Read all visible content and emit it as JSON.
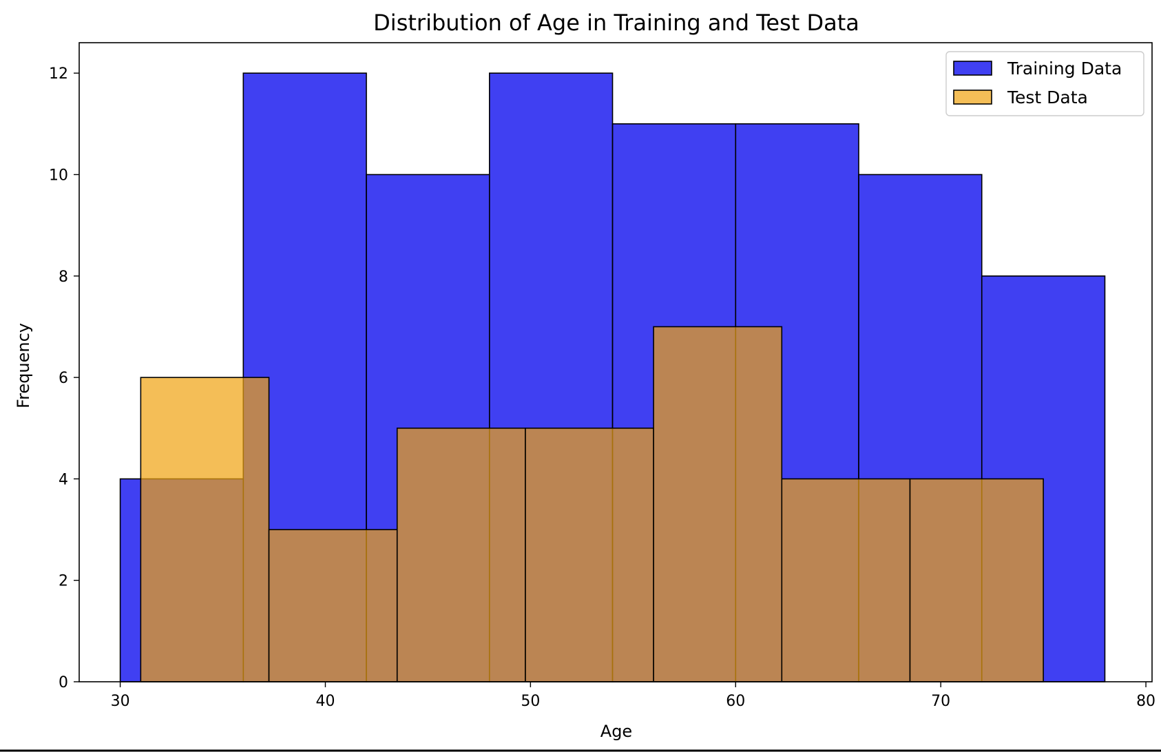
{
  "chart_data": {
    "type": "histogram",
    "title": "Distribution of Age in Training and Test Data",
    "xlabel": "Age",
    "ylabel": "Frequency",
    "xlim": [
      28,
      80.3
    ],
    "ylim": [
      0,
      12.6
    ],
    "x_ticks": [
      30,
      40,
      50,
      60,
      70,
      80
    ],
    "y_ticks": [
      0,
      2,
      4,
      6,
      8,
      10,
      12
    ],
    "grid": false,
    "legend_position": "top-right",
    "series": [
      {
        "name": "Training Data",
        "color": "#0000ee",
        "edge_color": "#000000",
        "opacity": 0.75,
        "bins": [
          {
            "start": 30,
            "end": 36,
            "count": 4
          },
          {
            "start": 36,
            "end": 42,
            "count": 12
          },
          {
            "start": 42,
            "end": 48,
            "count": 10
          },
          {
            "start": 48,
            "end": 54,
            "count": 12
          },
          {
            "start": 54,
            "end": 60,
            "count": 11
          },
          {
            "start": 60,
            "end": 66,
            "count": 11
          },
          {
            "start": 66,
            "end": 72,
            "count": 10
          },
          {
            "start": 72,
            "end": 78,
            "count": 8
          }
        ]
      },
      {
        "name": "Test Data",
        "color": "#f0a30f",
        "edge_color": "#000000",
        "opacity": 0.7,
        "bins": [
          {
            "start": 31,
            "end": 37.25,
            "count": 6
          },
          {
            "start": 37.25,
            "end": 43.5,
            "count": 3
          },
          {
            "start": 43.5,
            "end": 49.75,
            "count": 5
          },
          {
            "start": 49.75,
            "end": 56,
            "count": 5
          },
          {
            "start": 56,
            "end": 62.25,
            "count": 7
          },
          {
            "start": 62.25,
            "end": 68.5,
            "count": 4
          },
          {
            "start": 68.5,
            "end": 75,
            "count": 4
          }
        ]
      }
    ]
  }
}
